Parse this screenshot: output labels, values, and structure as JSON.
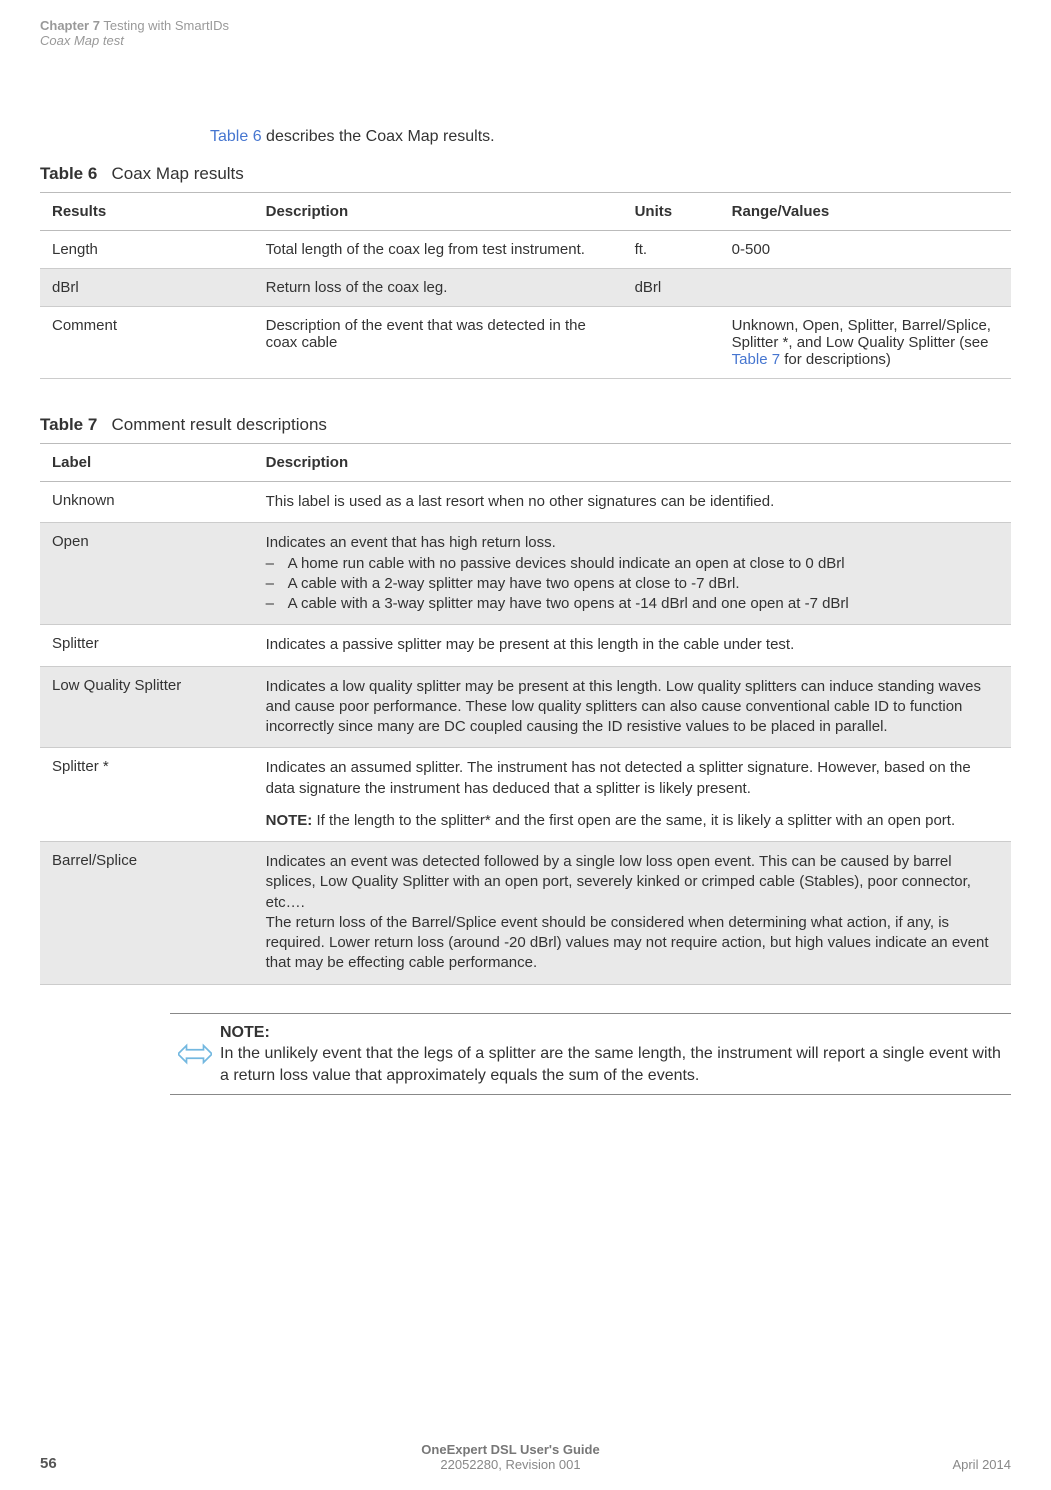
{
  "header": {
    "chapter": "Chapter 7",
    "chapter_title": "Testing with SmartIDs",
    "section": "Coax Map test"
  },
  "intro": {
    "link_text": "Table 6",
    "rest": " describes the Coax Map results."
  },
  "table6": {
    "label": "Table 6",
    "title": "Coax Map results",
    "columns": [
      "Results",
      "Description",
      "Units",
      "Range/Values"
    ],
    "rows": [
      {
        "results": "Length",
        "description": "Total length of the coax leg from test instrument.",
        "units": "ft.",
        "range": "0-500",
        "shade": false
      },
      {
        "results": "dBrl",
        "description": "Return loss of the coax leg.",
        "units": "dBrl",
        "range": "",
        "shade": true
      },
      {
        "results": "Comment",
        "description": "Description of the event that was detected in the coax cable",
        "units": "",
        "range_pre": "Unknown, Open, Splitter, Barrel/Splice, Splitter *, and Low Quality Splitter (see ",
        "range_link": "Table 7",
        "range_post": " for descriptions)",
        "shade": false
      }
    ]
  },
  "table7": {
    "label": "Table 7",
    "title": "Comment result descriptions",
    "columns": [
      "Label",
      "Description"
    ],
    "rows": [
      {
        "label": "Unknown",
        "desc_lines": [
          {
            "type": "line",
            "text": "This label is used as a last resort when no other signatures can be identified."
          }
        ],
        "shade": false
      },
      {
        "label": "Open",
        "desc_lines": [
          {
            "type": "line",
            "text": "Indicates an event that has high return loss."
          },
          {
            "type": "bullet",
            "text": "A home run cable with no passive devices should indicate an open at close to 0 dBrl"
          },
          {
            "type": "bullet",
            "text": "A cable with a 2-way splitter may have two opens at close to -7 dBrl."
          },
          {
            "type": "bullet",
            "text": "A cable with a 3-way splitter may have two opens at -14 dBrl and one open at -7 dBrl"
          }
        ],
        "shade": true
      },
      {
        "label": "Splitter",
        "desc_lines": [
          {
            "type": "line",
            "text": "Indicates a passive splitter may be present at this length in the cable under test."
          }
        ],
        "shade": false
      },
      {
        "label": "Low Quality Splitter",
        "desc_lines": [
          {
            "type": "line",
            "text": "Indicates a low quality splitter may be present at this length. Low quality splitters can induce standing waves and cause poor performance. These low quality splitters can also cause conventional cable ID to function incorrectly since many are DC coupled causing the ID resistive values to be placed in parallel."
          }
        ],
        "shade": true
      },
      {
        "label": "Splitter *",
        "desc_lines": [
          {
            "type": "line",
            "text": "Indicates an assumed splitter. The instrument has not detected a splitter signature. However, based on the data signature the instrument has deduced that a splitter is likely present."
          },
          {
            "type": "note",
            "label": "NOTE:",
            "text": " If the length to the splitter* and the first open are the same, it is likely a splitter with an open port."
          }
        ],
        "shade": false
      },
      {
        "label": "Barrel/Splice",
        "desc_lines": [
          {
            "type": "line",
            "text": "Indicates an event was detected followed by a single low loss open event. This can be caused by barrel splices, Low Quality Splitter with an open port, severely kinked or crimped cable (Stables), poor connector, etc…."
          },
          {
            "type": "line",
            "text": "The return loss of the Barrel/Splice event should be considered when determining what action, if any, is required. Lower return loss (around -20 dBrl) values may not require action, but high values indicate an event that may be effecting cable performance."
          }
        ],
        "shade": true
      }
    ]
  },
  "note": {
    "label": "NOTE:",
    "text": "In the unlikely event that the legs of a splitter are the same length, the instrument will report a single event with a return loss value that approximately equals the sum of the events."
  },
  "footer": {
    "page": "56",
    "guide": "OneExpert DSL User's Guide",
    "revision": "22052280, Revision 001",
    "date": "April 2014"
  }
}
